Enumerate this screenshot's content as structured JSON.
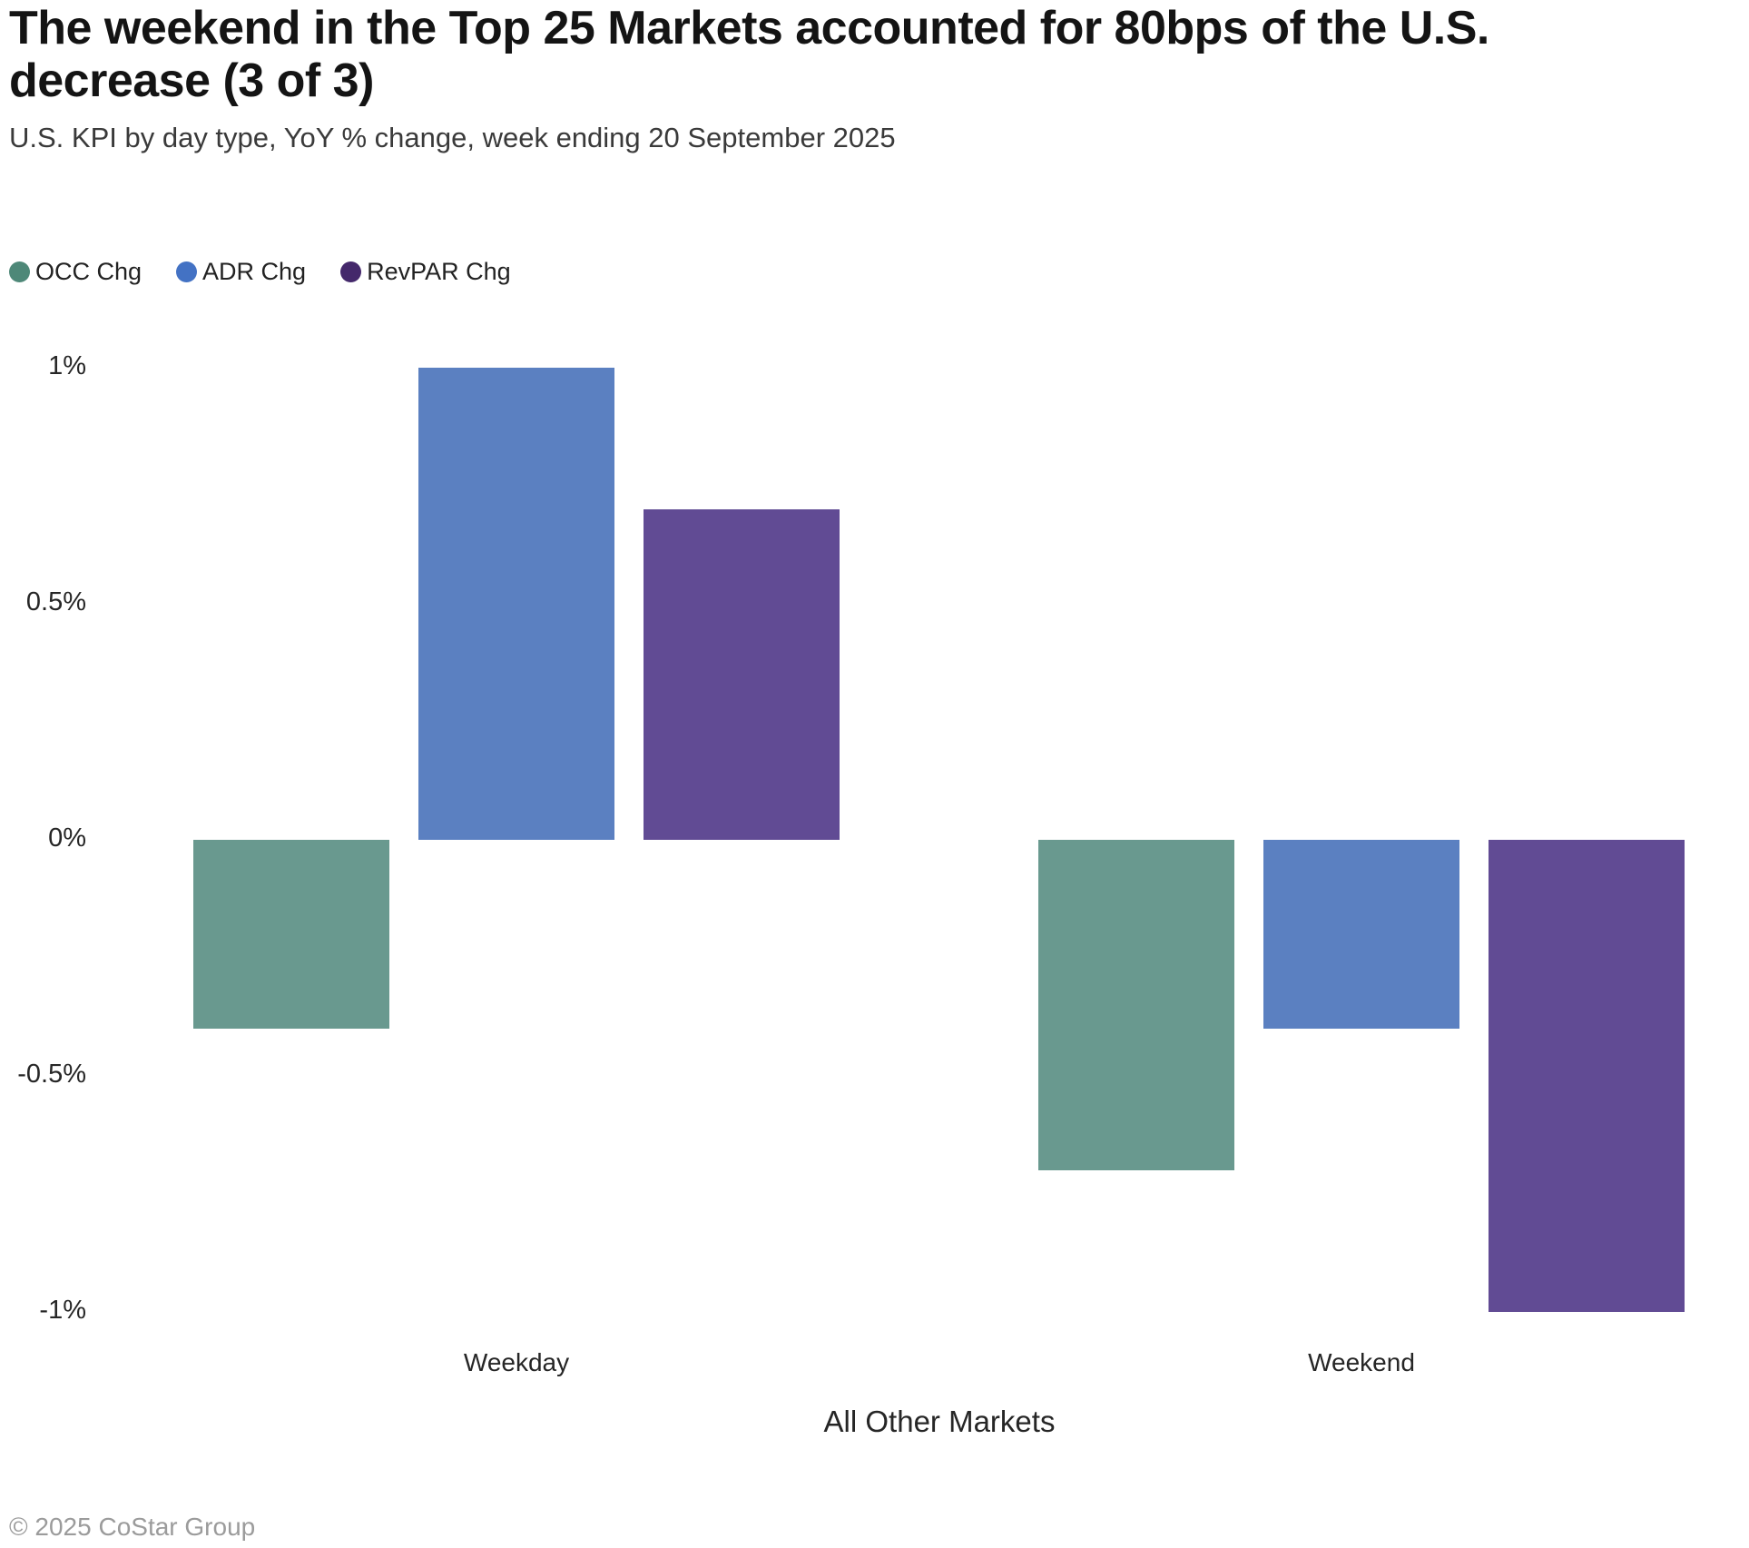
{
  "title": {
    "line1": "The weekend in the Top 25 Markets accounted for 80bps of the U.S.",
    "line2": "decrease (3 of 3)"
  },
  "subtitle": "U.S. KPI by day type, YoY % change, week ending 20 September 2025",
  "legend": {
    "items": [
      {
        "label": "OCC Chg",
        "color": "#4E8878"
      },
      {
        "label": "ADR Chg",
        "color": "#4372C4"
      },
      {
        "label": "RevPAR Chg",
        "color": "#44286B"
      }
    ]
  },
  "chart_data": {
    "type": "bar",
    "categories": [
      "Weekday",
      "Weekend"
    ],
    "series": [
      {
        "name": "OCC Chg",
        "color": "#69998F",
        "values": [
          -0.4,
          -0.7
        ]
      },
      {
        "name": "ADR Chg",
        "color": "#5B80C1",
        "values": [
          1.0,
          -0.4
        ]
      },
      {
        "name": "RevPAR Chg",
        "color": "#614B94",
        "values": [
          0.7,
          -1.0
        ]
      }
    ],
    "xlabel": "All Other Markets",
    "ylabel": "",
    "yticks": [
      {
        "value": 1,
        "label": "1%"
      },
      {
        "value": 0.5,
        "label": "0.5%"
      },
      {
        "value": 0,
        "label": "0%"
      },
      {
        "value": -0.5,
        "label": "-0.5%"
      },
      {
        "value": -1,
        "label": "-1%"
      }
    ],
    "ylim": [
      -1.15,
      1.25
    ],
    "grid": false,
    "legend_position": "top-left"
  },
  "footer": "© 2025 CoStar Group"
}
